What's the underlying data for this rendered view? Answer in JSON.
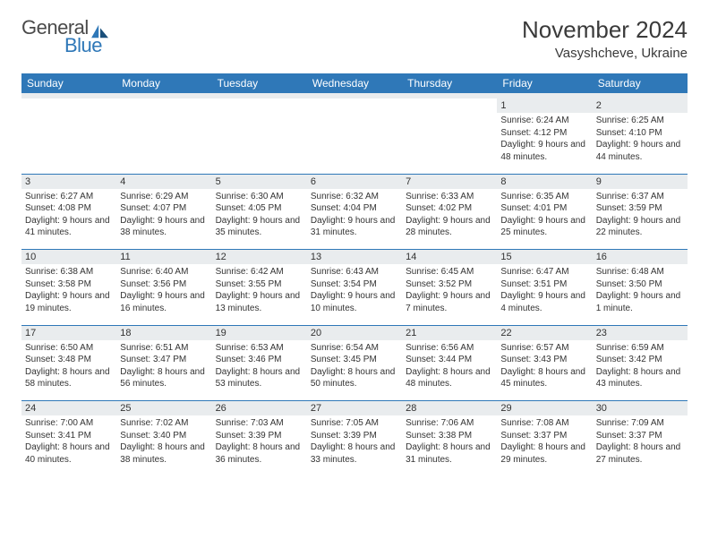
{
  "logo": {
    "text1": "General",
    "text2": "Blue",
    "color1": "#4a4a4a",
    "color2": "#2f78b8"
  },
  "header": {
    "title": "November 2024",
    "location": "Vasyshcheve, Ukraine"
  },
  "calendar": {
    "header_bg": "#2f78b8",
    "header_text": "#ffffff",
    "daynum_bg": "#e9ecee",
    "divider_color": "#2f78b8",
    "day_labels": [
      "Sunday",
      "Monday",
      "Tuesday",
      "Wednesday",
      "Thursday",
      "Friday",
      "Saturday"
    ],
    "weeks": [
      [
        null,
        null,
        null,
        null,
        null,
        {
          "num": "1",
          "sunrise": "Sunrise: 6:24 AM",
          "sunset": "Sunset: 4:12 PM",
          "daylight": "Daylight: 9 hours and 48 minutes."
        },
        {
          "num": "2",
          "sunrise": "Sunrise: 6:25 AM",
          "sunset": "Sunset: 4:10 PM",
          "daylight": "Daylight: 9 hours and 44 minutes."
        }
      ],
      [
        {
          "num": "3",
          "sunrise": "Sunrise: 6:27 AM",
          "sunset": "Sunset: 4:08 PM",
          "daylight": "Daylight: 9 hours and 41 minutes."
        },
        {
          "num": "4",
          "sunrise": "Sunrise: 6:29 AM",
          "sunset": "Sunset: 4:07 PM",
          "daylight": "Daylight: 9 hours and 38 minutes."
        },
        {
          "num": "5",
          "sunrise": "Sunrise: 6:30 AM",
          "sunset": "Sunset: 4:05 PM",
          "daylight": "Daylight: 9 hours and 35 minutes."
        },
        {
          "num": "6",
          "sunrise": "Sunrise: 6:32 AM",
          "sunset": "Sunset: 4:04 PM",
          "daylight": "Daylight: 9 hours and 31 minutes."
        },
        {
          "num": "7",
          "sunrise": "Sunrise: 6:33 AM",
          "sunset": "Sunset: 4:02 PM",
          "daylight": "Daylight: 9 hours and 28 minutes."
        },
        {
          "num": "8",
          "sunrise": "Sunrise: 6:35 AM",
          "sunset": "Sunset: 4:01 PM",
          "daylight": "Daylight: 9 hours and 25 minutes."
        },
        {
          "num": "9",
          "sunrise": "Sunrise: 6:37 AM",
          "sunset": "Sunset: 3:59 PM",
          "daylight": "Daylight: 9 hours and 22 minutes."
        }
      ],
      [
        {
          "num": "10",
          "sunrise": "Sunrise: 6:38 AM",
          "sunset": "Sunset: 3:58 PM",
          "daylight": "Daylight: 9 hours and 19 minutes."
        },
        {
          "num": "11",
          "sunrise": "Sunrise: 6:40 AM",
          "sunset": "Sunset: 3:56 PM",
          "daylight": "Daylight: 9 hours and 16 minutes."
        },
        {
          "num": "12",
          "sunrise": "Sunrise: 6:42 AM",
          "sunset": "Sunset: 3:55 PM",
          "daylight": "Daylight: 9 hours and 13 minutes."
        },
        {
          "num": "13",
          "sunrise": "Sunrise: 6:43 AM",
          "sunset": "Sunset: 3:54 PM",
          "daylight": "Daylight: 9 hours and 10 minutes."
        },
        {
          "num": "14",
          "sunrise": "Sunrise: 6:45 AM",
          "sunset": "Sunset: 3:52 PM",
          "daylight": "Daylight: 9 hours and 7 minutes."
        },
        {
          "num": "15",
          "sunrise": "Sunrise: 6:47 AM",
          "sunset": "Sunset: 3:51 PM",
          "daylight": "Daylight: 9 hours and 4 minutes."
        },
        {
          "num": "16",
          "sunrise": "Sunrise: 6:48 AM",
          "sunset": "Sunset: 3:50 PM",
          "daylight": "Daylight: 9 hours and 1 minute."
        }
      ],
      [
        {
          "num": "17",
          "sunrise": "Sunrise: 6:50 AM",
          "sunset": "Sunset: 3:48 PM",
          "daylight": "Daylight: 8 hours and 58 minutes."
        },
        {
          "num": "18",
          "sunrise": "Sunrise: 6:51 AM",
          "sunset": "Sunset: 3:47 PM",
          "daylight": "Daylight: 8 hours and 56 minutes."
        },
        {
          "num": "19",
          "sunrise": "Sunrise: 6:53 AM",
          "sunset": "Sunset: 3:46 PM",
          "daylight": "Daylight: 8 hours and 53 minutes."
        },
        {
          "num": "20",
          "sunrise": "Sunrise: 6:54 AM",
          "sunset": "Sunset: 3:45 PM",
          "daylight": "Daylight: 8 hours and 50 minutes."
        },
        {
          "num": "21",
          "sunrise": "Sunrise: 6:56 AM",
          "sunset": "Sunset: 3:44 PM",
          "daylight": "Daylight: 8 hours and 48 minutes."
        },
        {
          "num": "22",
          "sunrise": "Sunrise: 6:57 AM",
          "sunset": "Sunset: 3:43 PM",
          "daylight": "Daylight: 8 hours and 45 minutes."
        },
        {
          "num": "23",
          "sunrise": "Sunrise: 6:59 AM",
          "sunset": "Sunset: 3:42 PM",
          "daylight": "Daylight: 8 hours and 43 minutes."
        }
      ],
      [
        {
          "num": "24",
          "sunrise": "Sunrise: 7:00 AM",
          "sunset": "Sunset: 3:41 PM",
          "daylight": "Daylight: 8 hours and 40 minutes."
        },
        {
          "num": "25",
          "sunrise": "Sunrise: 7:02 AM",
          "sunset": "Sunset: 3:40 PM",
          "daylight": "Daylight: 8 hours and 38 minutes."
        },
        {
          "num": "26",
          "sunrise": "Sunrise: 7:03 AM",
          "sunset": "Sunset: 3:39 PM",
          "daylight": "Daylight: 8 hours and 36 minutes."
        },
        {
          "num": "27",
          "sunrise": "Sunrise: 7:05 AM",
          "sunset": "Sunset: 3:39 PM",
          "daylight": "Daylight: 8 hours and 33 minutes."
        },
        {
          "num": "28",
          "sunrise": "Sunrise: 7:06 AM",
          "sunset": "Sunset: 3:38 PM",
          "daylight": "Daylight: 8 hours and 31 minutes."
        },
        {
          "num": "29",
          "sunrise": "Sunrise: 7:08 AM",
          "sunset": "Sunset: 3:37 PM",
          "daylight": "Daylight: 8 hours and 29 minutes."
        },
        {
          "num": "30",
          "sunrise": "Sunrise: 7:09 AM",
          "sunset": "Sunset: 3:37 PM",
          "daylight": "Daylight: 8 hours and 27 minutes."
        }
      ]
    ]
  }
}
